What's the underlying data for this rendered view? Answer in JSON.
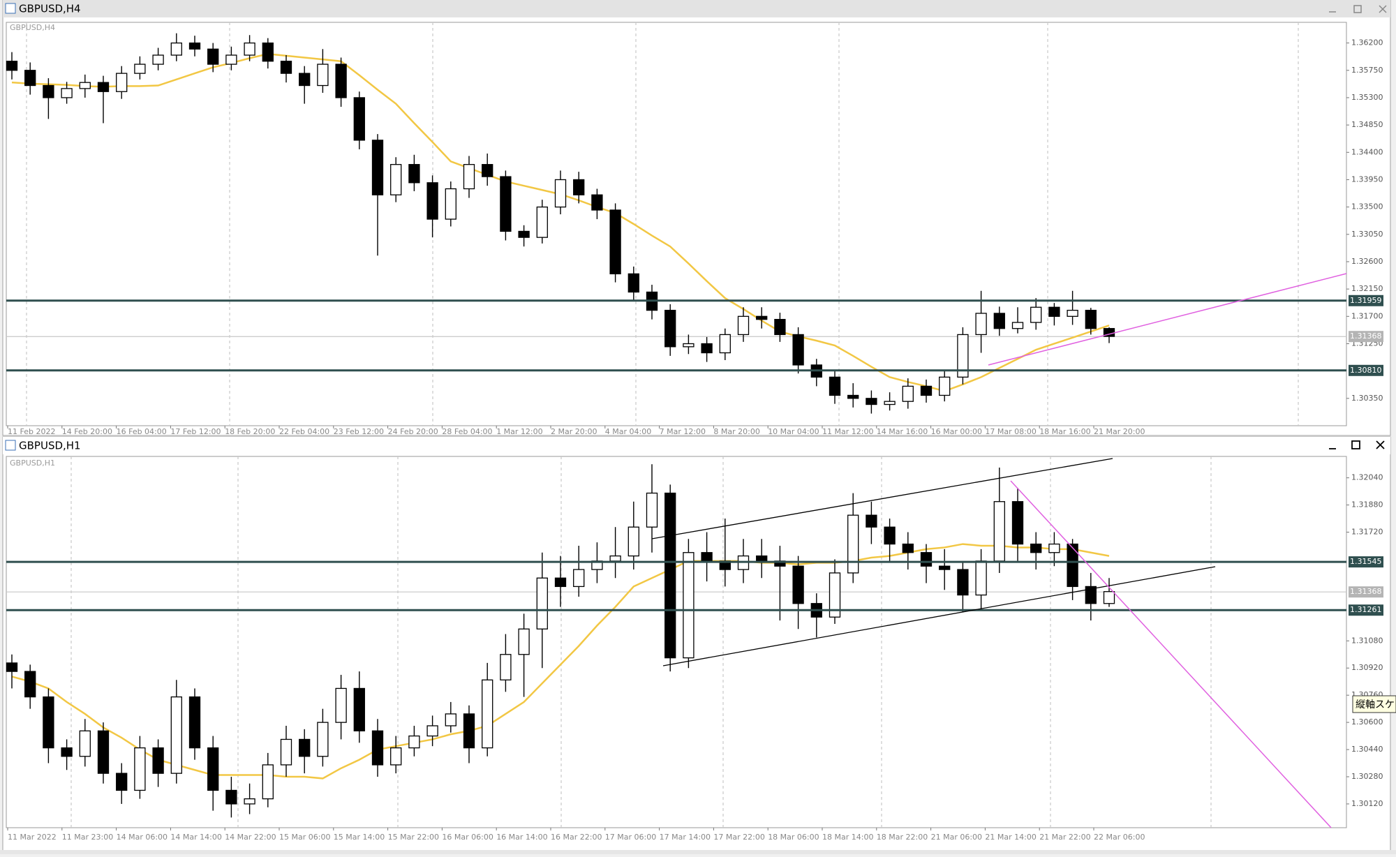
{
  "chart_data": [
    {
      "type": "candlestick",
      "title": "GBPUSD,H4",
      "x_labels": [
        "11 Feb 2022",
        "14 Feb 20:00",
        "16 Feb 04:00",
        "17 Feb 12:00",
        "18 Feb 20:00",
        "22 Feb 04:00",
        "23 Feb 12:00",
        "24 Feb 20:00",
        "28 Feb 04:00",
        "1 Mar 12:00",
        "2 Mar 20:00",
        "4 Mar 04:00",
        "7 Mar 12:00",
        "8 Mar 20:00",
        "10 Mar 04:00",
        "11 Mar 12:00",
        "14 Mar 16:00",
        "16 Mar 00:00",
        "17 Mar 08:00",
        "18 Mar 16:00",
        "21 Mar 20:00"
      ],
      "open": [
        1.359,
        1.3575,
        1.355,
        1.353,
        1.3545,
        1.3555,
        1.354,
        1.357,
        1.3585,
        1.36,
        1.362,
        1.361,
        1.3585,
        1.36,
        1.362,
        1.359,
        1.357,
        1.355,
        1.3585,
        1.353,
        1.346,
        1.337,
        1.342,
        1.339,
        1.333,
        1.338,
        1.342,
        1.34,
        1.331,
        1.33,
        1.335,
        1.3395,
        1.337,
        1.3345,
        1.324,
        1.321,
        1.318,
        1.312,
        1.3125,
        1.311,
        1.314,
        1.317,
        1.3165,
        1.314,
        1.309,
        1.307,
        1.304,
        1.3035,
        1.3025,
        1.303,
        1.3055,
        1.304,
        1.307,
        1.314,
        1.3175,
        1.315,
        1.316,
        1.3185,
        1.317,
        1.318,
        1.315
      ],
      "high": [
        1.3605,
        1.3588,
        1.3562,
        1.3556,
        1.3568,
        1.3566,
        1.3582,
        1.3598,
        1.3612,
        1.3636,
        1.3632,
        1.362,
        1.3614,
        1.3633,
        1.3628,
        1.36,
        1.3582,
        1.361,
        1.3596,
        1.354,
        1.347,
        1.3432,
        1.3436,
        1.3402,
        1.3392,
        1.3434,
        1.3438,
        1.341,
        1.332,
        1.3362,
        1.341,
        1.3408,
        1.338,
        1.3356,
        1.3252,
        1.3222,
        1.319,
        1.314,
        1.3136,
        1.315,
        1.3185,
        1.3185,
        1.3176,
        1.3152,
        1.31,
        1.308,
        1.306,
        1.3048,
        1.3045,
        1.3068,
        1.3066,
        1.3082,
        1.3152,
        1.3212,
        1.3186,
        1.3185,
        1.32,
        1.3192,
        1.3212,
        1.3184,
        1.3152
      ],
      "low": [
        1.356,
        1.3535,
        1.3495,
        1.352,
        1.353,
        1.3488,
        1.3528,
        1.356,
        1.3575,
        1.359,
        1.3598,
        1.3572,
        1.3575,
        1.359,
        1.3578,
        1.3555,
        1.352,
        1.3538,
        1.3515,
        1.3445,
        1.327,
        1.3358,
        1.3376,
        1.33,
        1.3318,
        1.3365,
        1.3385,
        1.3295,
        1.3285,
        1.329,
        1.3338,
        1.3356,
        1.333,
        1.3226,
        1.3195,
        1.3165,
        1.3105,
        1.3108,
        1.3095,
        1.3098,
        1.3128,
        1.315,
        1.3128,
        1.3076,
        1.3055,
        1.3026,
        1.302,
        1.301,
        1.3015,
        1.3018,
        1.3028,
        1.303,
        1.3058,
        1.311,
        1.3138,
        1.3142,
        1.3148,
        1.3155,
        1.3156,
        1.314,
        1.3126
      ],
      "close": [
        1.3575,
        1.355,
        1.353,
        1.3545,
        1.3555,
        1.354,
        1.357,
        1.3585,
        1.36,
        1.362,
        1.361,
        1.3585,
        1.36,
        1.362,
        1.359,
        1.357,
        1.355,
        1.3585,
        1.353,
        1.346,
        1.337,
        1.342,
        1.339,
        1.333,
        1.338,
        1.342,
        1.34,
        1.331,
        1.33,
        1.335,
        1.3395,
        1.337,
        1.3345,
        1.324,
        1.321,
        1.318,
        1.312,
        1.3125,
        1.311,
        1.314,
        1.317,
        1.3165,
        1.314,
        1.309,
        1.307,
        1.304,
        1.3035,
        1.3025,
        1.303,
        1.3055,
        1.304,
        1.307,
        1.314,
        1.3175,
        1.315,
        1.316,
        1.3185,
        1.317,
        1.318,
        1.315,
        1.3137
      ],
      "bull_color": "#ffffff",
      "bear_color": "#000000",
      "ma": {
        "color": "#f2c744",
        "values": [
          1.3555,
          1.3553,
          1.3552,
          1.3551,
          1.3549,
          1.3548,
          1.3549,
          1.3549,
          1.355,
          1.356,
          1.357,
          1.358,
          1.3587,
          1.3595,
          1.3602,
          1.3599,
          1.3596,
          1.3593,
          1.359,
          1.3567,
          1.3543,
          1.352,
          1.3488,
          1.3457,
          1.3425,
          1.3414,
          1.3403,
          1.3392,
          1.3385,
          1.3378,
          1.3371,
          1.3361,
          1.335,
          1.334,
          1.3322,
          1.3303,
          1.3285,
          1.3257,
          1.3228,
          1.32,
          1.3182,
          1.3163,
          1.3145,
          1.3137,
          1.313,
          1.3122,
          1.3105,
          1.3087,
          1.307,
          1.3062,
          1.3055,
          1.3047,
          1.3058,
          1.307,
          1.3085,
          1.31,
          1.3115,
          1.3125,
          1.3135,
          1.3145,
          1.3155
        ]
      },
      "ylim": [
        1.299,
        1.3654
      ],
      "yticks": [
        {
          "value": 1.362,
          "label": "1.36200"
        },
        {
          "value": 1.3575,
          "label": "1.35750"
        },
        {
          "value": 1.353,
          "label": "1.35300"
        },
        {
          "value": 1.3485,
          "label": "1.34850"
        },
        {
          "value": 1.344,
          "label": "1.34400"
        },
        {
          "value": 1.3395,
          "label": "1.33950"
        },
        {
          "value": 1.335,
          "label": "1.33500"
        },
        {
          "value": 1.3305,
          "label": "1.33050"
        },
        {
          "value": 1.326,
          "label": "1.32600"
        },
        {
          "value": 1.3215,
          "label": "1.32150"
        },
        {
          "value": 1.317,
          "label": "1.31700"
        },
        {
          "value": 1.3125,
          "label": "1.31250"
        },
        {
          "value": 1.3035,
          "label": "1.30350"
        }
      ],
      "levels": [
        1.31959,
        {
          "value": 1.3081,
          "label": "1.30810"
        }
      ],
      "level_color": "#2f4f4f",
      "current": 1.31368
    },
    {
      "type": "candlestick",
      "title": "GBPUSD,H1",
      "x_labels": [
        "11 Mar 2022",
        "11 Mar 23:00",
        "14 Mar 06:00",
        "14 Mar 14:00",
        "14 Mar 22:00",
        "15 Mar 06:00",
        "15 Mar 14:00",
        "15 Mar 22:00",
        "16 Mar 06:00",
        "16 Mar 14:00",
        "16 Mar 22:00",
        "17 Mar 06:00",
        "17 Mar 14:00",
        "17 Mar 22:00",
        "18 Mar 06:00",
        "18 Mar 14:00",
        "18 Mar 22:00",
        "21 Mar 06:00",
        "21 Mar 14:00",
        "21 Mar 22:00",
        "22 Mar 06:00"
      ],
      "open": [
        1.3095,
        1.309,
        1.3075,
        1.3045,
        1.304,
        1.3055,
        1.303,
        1.302,
        1.3045,
        1.303,
        1.3075,
        1.3045,
        1.302,
        1.3012,
        1.3015,
        1.3035,
        1.305,
        1.304,
        1.306,
        1.308,
        1.3055,
        1.3035,
        1.3045,
        1.3052,
        1.3058,
        1.3065,
        1.3045,
        1.3085,
        1.31,
        1.3115,
        1.3145,
        1.314,
        1.315,
        1.3155,
        1.3158,
        1.3175,
        1.3195,
        1.3098,
        1.316,
        1.3155,
        1.315,
        1.3158,
        1.3155,
        1.3152,
        1.313,
        1.3122,
        1.3148,
        1.3182,
        1.3175,
        1.3165,
        1.316,
        1.3152,
        1.315,
        1.3135,
        1.3155,
        1.319,
        1.3165,
        1.316,
        1.3165,
        1.314,
        1.313
      ],
      "high": [
        1.31,
        1.3094,
        1.308,
        1.305,
        1.3062,
        1.306,
        1.3036,
        1.3052,
        1.305,
        1.3085,
        1.308,
        1.3052,
        1.3028,
        1.3024,
        1.3042,
        1.3058,
        1.3056,
        1.3068,
        1.3088,
        1.309,
        1.3062,
        1.3052,
        1.3058,
        1.3064,
        1.3072,
        1.307,
        1.3095,
        1.3112,
        1.3124,
        1.316,
        1.3158,
        1.3164,
        1.3166,
        1.3175,
        1.319,
        1.3212,
        1.32,
        1.3168,
        1.3172,
        1.318,
        1.3168,
        1.3168,
        1.3164,
        1.3158,
        1.3136,
        1.3156,
        1.3195,
        1.319,
        1.318,
        1.3172,
        1.3165,
        1.3162,
        1.3155,
        1.3162,
        1.321,
        1.3198,
        1.3172,
        1.3172,
        1.3168,
        1.3148,
        1.3145
      ],
      "low": [
        1.308,
        1.3068,
        1.3036,
        1.3032,
        1.3034,
        1.3024,
        1.3012,
        1.3015,
        1.3022,
        1.3024,
        1.3038,
        1.3008,
        1.3004,
        1.3006,
        1.301,
        1.3028,
        1.303,
        1.3034,
        1.305,
        1.3048,
        1.3028,
        1.303,
        1.304,
        1.3046,
        1.3054,
        1.3036,
        1.304,
        1.3078,
        1.3075,
        1.3092,
        1.3128,
        1.3134,
        1.3142,
        1.3145,
        1.315,
        1.316,
        1.309,
        1.3092,
        1.3143,
        1.314,
        1.3142,
        1.3145,
        1.312,
        1.3115,
        1.311,
        1.3118,
        1.3142,
        1.3165,
        1.3155,
        1.315,
        1.3142,
        1.3138,
        1.3125,
        1.3126,
        1.3148,
        1.3155,
        1.315,
        1.3152,
        1.3132,
        1.312,
        1.3128
      ],
      "close": [
        1.309,
        1.3075,
        1.3045,
        1.304,
        1.3055,
        1.303,
        1.302,
        1.3045,
        1.303,
        1.3075,
        1.3045,
        1.302,
        1.3012,
        1.3015,
        1.3035,
        1.305,
        1.304,
        1.306,
        1.308,
        1.3055,
        1.3035,
        1.3045,
        1.3052,
        1.3058,
        1.3065,
        1.3045,
        1.3085,
        1.31,
        1.3115,
        1.3145,
        1.314,
        1.315,
        1.3155,
        1.3158,
        1.3175,
        1.3195,
        1.3098,
        1.316,
        1.3155,
        1.315,
        1.3158,
        1.3155,
        1.3152,
        1.313,
        1.3122,
        1.3148,
        1.3182,
        1.3175,
        1.3165,
        1.316,
        1.3152,
        1.315,
        1.3135,
        1.3155,
        1.319,
        1.3165,
        1.316,
        1.3165,
        1.314,
        1.313,
        1.3137
      ],
      "bull_color": "#ffffff",
      "bear_color": "#000000",
      "ma": {
        "color": "#f2c744",
        "values": [
          1.3087,
          1.3084,
          1.308,
          1.3072,
          1.3065,
          1.3057,
          1.3051,
          1.3044,
          1.3038,
          1.3035,
          1.3032,
          1.3029,
          1.3029,
          1.3029,
          1.3029,
          1.3028,
          1.3028,
          1.3027,
          1.3033,
          1.3038,
          1.3044,
          1.3046,
          1.3048,
          1.305,
          1.3053,
          1.3055,
          1.3058,
          1.3065,
          1.3072,
          1.3083,
          1.3094,
          1.3105,
          1.3117,
          1.3128,
          1.314,
          1.3145,
          1.315,
          1.3155,
          1.3155,
          1.3155,
          1.3155,
          1.3154,
          1.3154,
          1.3153,
          1.3154,
          1.3154,
          1.3155,
          1.3157,
          1.3158,
          1.316,
          1.3162,
          1.3163,
          1.3165,
          1.3164,
          1.3164,
          1.3163,
          1.3163,
          1.3162,
          1.3162,
          1.316,
          1.3158
        ]
      },
      "ylim": [
        1.2998,
        1.32166
      ],
      "yticks": [
        {
          "value": 1.3204,
          "label": "1.32040"
        },
        {
          "value": 1.3188,
          "label": "1.31880"
        },
        {
          "value": 1.3172,
          "label": "1.31720"
        },
        {
          "value": 1.3108,
          "label": "1.31080"
        },
        {
          "value": 1.3092,
          "label": "1.30920"
        },
        {
          "value": 1.3076,
          "label": "1.30760"
        },
        {
          "value": 1.306,
          "label": "1.30600"
        },
        {
          "value": 1.3044,
          "label": "1.30440"
        },
        {
          "value": 1.3028,
          "label": "1.30280"
        },
        {
          "value": 1.3012,
          "label": "1.30120"
        }
      ],
      "levels": [
        1.31545,
        1.31261
      ],
      "level_color": "#2f4f4f",
      "current": 1.31368
    }
  ],
  "ui": {
    "tooltip": "縦軸スケ"
  }
}
